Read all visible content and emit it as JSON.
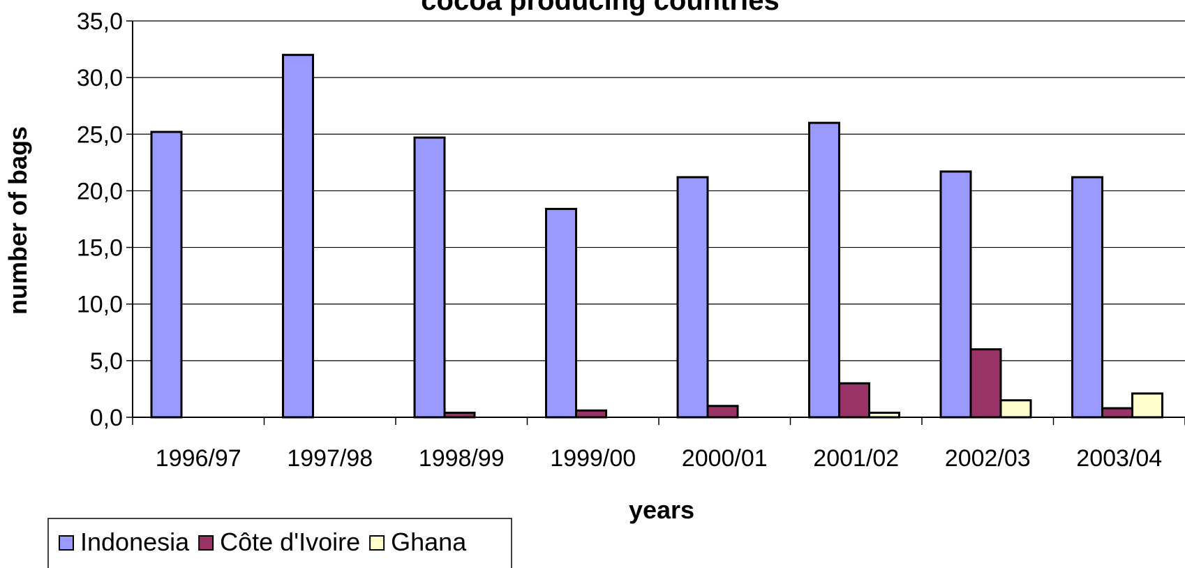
{
  "chart_data": {
    "type": "bar",
    "title": "cocoa producing countries",
    "xlabel": "years",
    "ylabel": "number of bags",
    "categories": [
      "1996/97",
      "1997/98",
      "1998/99",
      "1999/00",
      "2000/01",
      "2001/02",
      "2002/03",
      "2003/04"
    ],
    "series": [
      {
        "name": "Indonesia",
        "color": "#9999ff",
        "values": [
          25.2,
          32.0,
          24.7,
          18.4,
          21.2,
          26.0,
          21.7,
          21.2
        ]
      },
      {
        "name": "Côte d'Ivoire",
        "color": "#993366",
        "values": [
          0.0,
          0.0,
          0.4,
          0.6,
          1.0,
          3.0,
          6.0,
          0.8
        ]
      },
      {
        "name": "Ghana",
        "color": "#ffffcc",
        "values": [
          0.0,
          0.0,
          0.0,
          0.0,
          0.0,
          0.4,
          1.5,
          2.1
        ]
      }
    ],
    "ylim": [
      0,
      35
    ],
    "yticks": [
      "0,0",
      "5,0",
      "10,0",
      "15,0",
      "20,0",
      "25,0",
      "30,0",
      "35,0"
    ],
    "grid": true,
    "legend_position": "bottom-left"
  }
}
